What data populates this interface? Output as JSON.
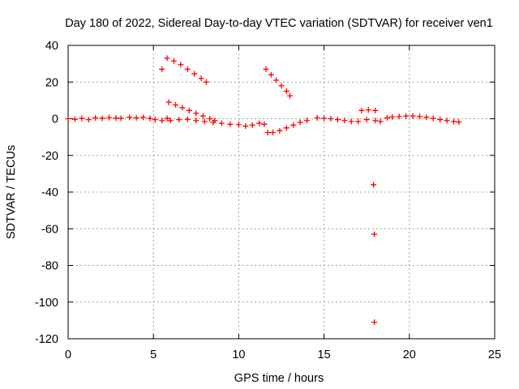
{
  "chart_data": {
    "type": "scatter",
    "title": "Day 180 of 2022, Sidereal Day-to-day VTEC variation (SDTVAR) for receiver ven1",
    "xlabel": "GPS time / hours",
    "ylabel": "SDTVAR / TECUs",
    "xlim": [
      0,
      25
    ],
    "ylim": [
      -120,
      40
    ],
    "xticks": [
      0,
      5,
      10,
      15,
      20,
      25
    ],
    "yticks": [
      -120,
      -100,
      -80,
      -60,
      -40,
      -20,
      0,
      20,
      40
    ],
    "xtick_labels": [
      "0",
      "5",
      "10",
      "15",
      "20",
      "25"
    ],
    "ytick_labels": [
      "-120",
      "-100",
      "-80",
      "-60",
      "-40",
      "-20",
      "0",
      "20",
      "40"
    ],
    "grid": true,
    "legend": "none",
    "marker": "+",
    "color": "#ff0000",
    "series": [
      {
        "name": "SDTVAR",
        "points": [
          [
            0.0,
            0.0
          ],
          [
            0.4,
            -0.3
          ],
          [
            0.8,
            0.2
          ],
          [
            1.2,
            -0.5
          ],
          [
            1.6,
            0.5
          ],
          [
            2.0,
            0.3
          ],
          [
            2.4,
            0.6
          ],
          [
            2.8,
            0.4
          ],
          [
            3.1,
            0.3
          ],
          [
            3.6,
            0.8
          ],
          [
            4.0,
            0.5
          ],
          [
            4.4,
            0.8
          ],
          [
            4.8,
            0.2
          ],
          [
            5.1,
            -0.5
          ],
          [
            5.5,
            -1.0
          ],
          [
            5.8,
            0.2
          ],
          [
            6.0,
            -1.0
          ],
          [
            6.5,
            -0.5
          ],
          [
            7.0,
            -0.3
          ],
          [
            7.5,
            -1.0
          ],
          [
            8.0,
            -1.5
          ],
          [
            8.5,
            -2.0
          ],
          [
            9.0,
            -2.5
          ],
          [
            9.5,
            -3.0
          ],
          [
            10.0,
            -3.2
          ],
          [
            10.4,
            -4.0
          ],
          [
            10.8,
            -3.5
          ],
          [
            11.2,
            -2.5
          ],
          [
            11.5,
            -3.0
          ],
          [
            11.7,
            -7.5
          ],
          [
            12.0,
            -7.5
          ],
          [
            12.4,
            -6.5
          ],
          [
            12.8,
            -5.0
          ],
          [
            13.2,
            -3.5
          ],
          [
            13.6,
            -2.0
          ],
          [
            14.0,
            -1.0
          ],
          [
            14.6,
            0.5
          ],
          [
            15.0,
            0.2
          ],
          [
            15.4,
            0.0
          ],
          [
            15.8,
            -0.5
          ],
          [
            16.2,
            -1.0
          ],
          [
            16.6,
            -1.5
          ],
          [
            17.0,
            -1.5
          ],
          [
            17.5,
            -0.5
          ],
          [
            18.0,
            -1.0
          ],
          [
            18.3,
            -1.5
          ],
          [
            18.7,
            0.5
          ],
          [
            19.0,
            1.0
          ],
          [
            19.4,
            1.2
          ],
          [
            19.8,
            1.5
          ],
          [
            20.2,
            1.5
          ],
          [
            20.6,
            1.2
          ],
          [
            21.0,
            0.8
          ],
          [
            21.4,
            0.2
          ],
          [
            21.8,
            -0.5
          ],
          [
            22.2,
            -1.0
          ],
          [
            22.6,
            -1.5
          ],
          [
            22.9,
            -1.8
          ],
          [
            5.8,
            33.0
          ],
          [
            6.2,
            31.5
          ],
          [
            6.6,
            29.5
          ],
          [
            7.0,
            27.0
          ],
          [
            7.4,
            24.5
          ],
          [
            7.8,
            22.0
          ],
          [
            8.1,
            20.0
          ],
          [
            5.5,
            27.0
          ],
          [
            5.9,
            9.0
          ],
          [
            6.3,
            7.5
          ],
          [
            6.7,
            6.0
          ],
          [
            7.1,
            4.5
          ],
          [
            7.5,
            3.0
          ],
          [
            7.9,
            1.5
          ],
          [
            8.3,
            0.0
          ],
          [
            8.6,
            -1.0
          ],
          [
            11.6,
            27.0
          ],
          [
            11.9,
            24.0
          ],
          [
            12.2,
            21.0
          ],
          [
            12.5,
            18.0
          ],
          [
            12.8,
            15.0
          ],
          [
            13.0,
            12.5
          ],
          [
            17.2,
            4.5
          ],
          [
            17.6,
            4.8
          ],
          [
            18.0,
            4.5
          ],
          [
            17.9,
            -36.0
          ],
          [
            17.95,
            -63.0
          ],
          [
            17.95,
            -111.0
          ]
        ]
      }
    ]
  }
}
